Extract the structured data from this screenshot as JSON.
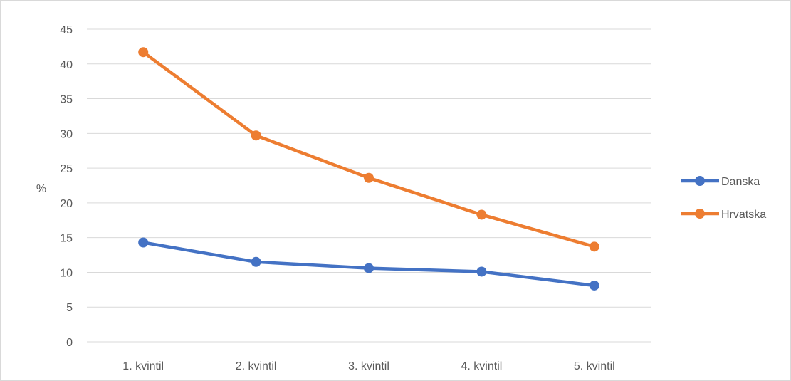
{
  "chart_data": {
    "type": "line",
    "title": "",
    "xlabel": "",
    "ylabel": "%",
    "categories": [
      "1. kvintil",
      "2. kvintil",
      "3. kvintil",
      "4. kvintil",
      "5. kvintil"
    ],
    "ylim": [
      0,
      45
    ],
    "yticks": [
      0,
      5,
      10,
      15,
      20,
      25,
      30,
      35,
      40,
      45
    ],
    "grid": true,
    "legend_position": "right",
    "series": [
      {
        "name": "Danska",
        "color": "#4472C4",
        "values": [
          14.3,
          11.5,
          10.6,
          10.1,
          8.1
        ]
      },
      {
        "name": "Hrvatska",
        "color": "#ED7D31",
        "values": [
          41.7,
          29.7,
          23.6,
          18.3,
          13.7
        ]
      }
    ]
  }
}
